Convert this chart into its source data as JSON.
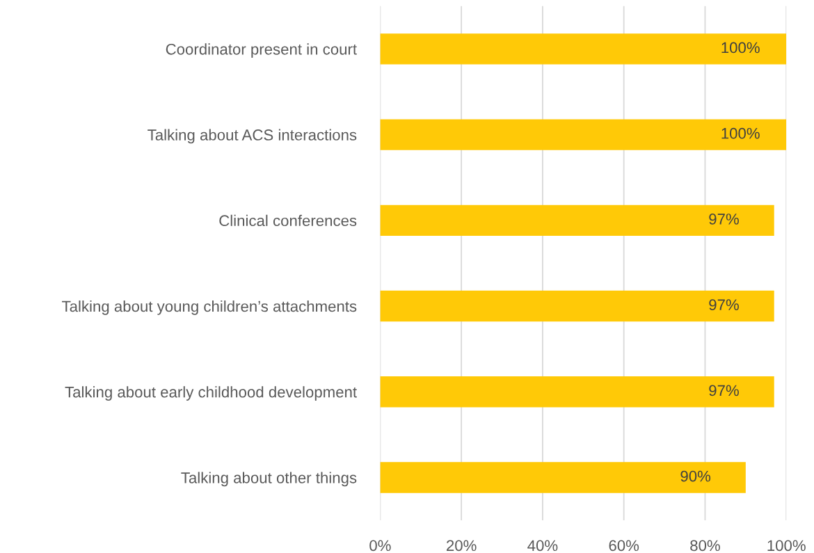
{
  "chart_data": {
    "type": "bar",
    "orientation": "horizontal",
    "categories": [
      "Coordinator present in court",
      "Talking about ACS interactions",
      "Clinical conferences",
      "Talking about young children’s attachments",
      "Talking about early childhood development",
      "Talking about other things"
    ],
    "values": [
      100,
      100,
      97,
      97,
      97,
      90
    ],
    "value_labels": [
      "100%",
      "100%",
      "97%",
      "97%",
      "97%",
      "90%"
    ],
    "color": "#ffc907",
    "xlim": [
      0,
      100
    ],
    "xticks": [
      {
        "value": 0,
        "label": "0%"
      },
      {
        "value": 20,
        "label": "20%"
      },
      {
        "value": 40,
        "label": "40%"
      },
      {
        "value": 60,
        "label": "60%"
      },
      {
        "value": 80,
        "label": "80%"
      },
      {
        "value": 100,
        "label": "100%"
      }
    ],
    "grid": "x",
    "legend": false
  }
}
